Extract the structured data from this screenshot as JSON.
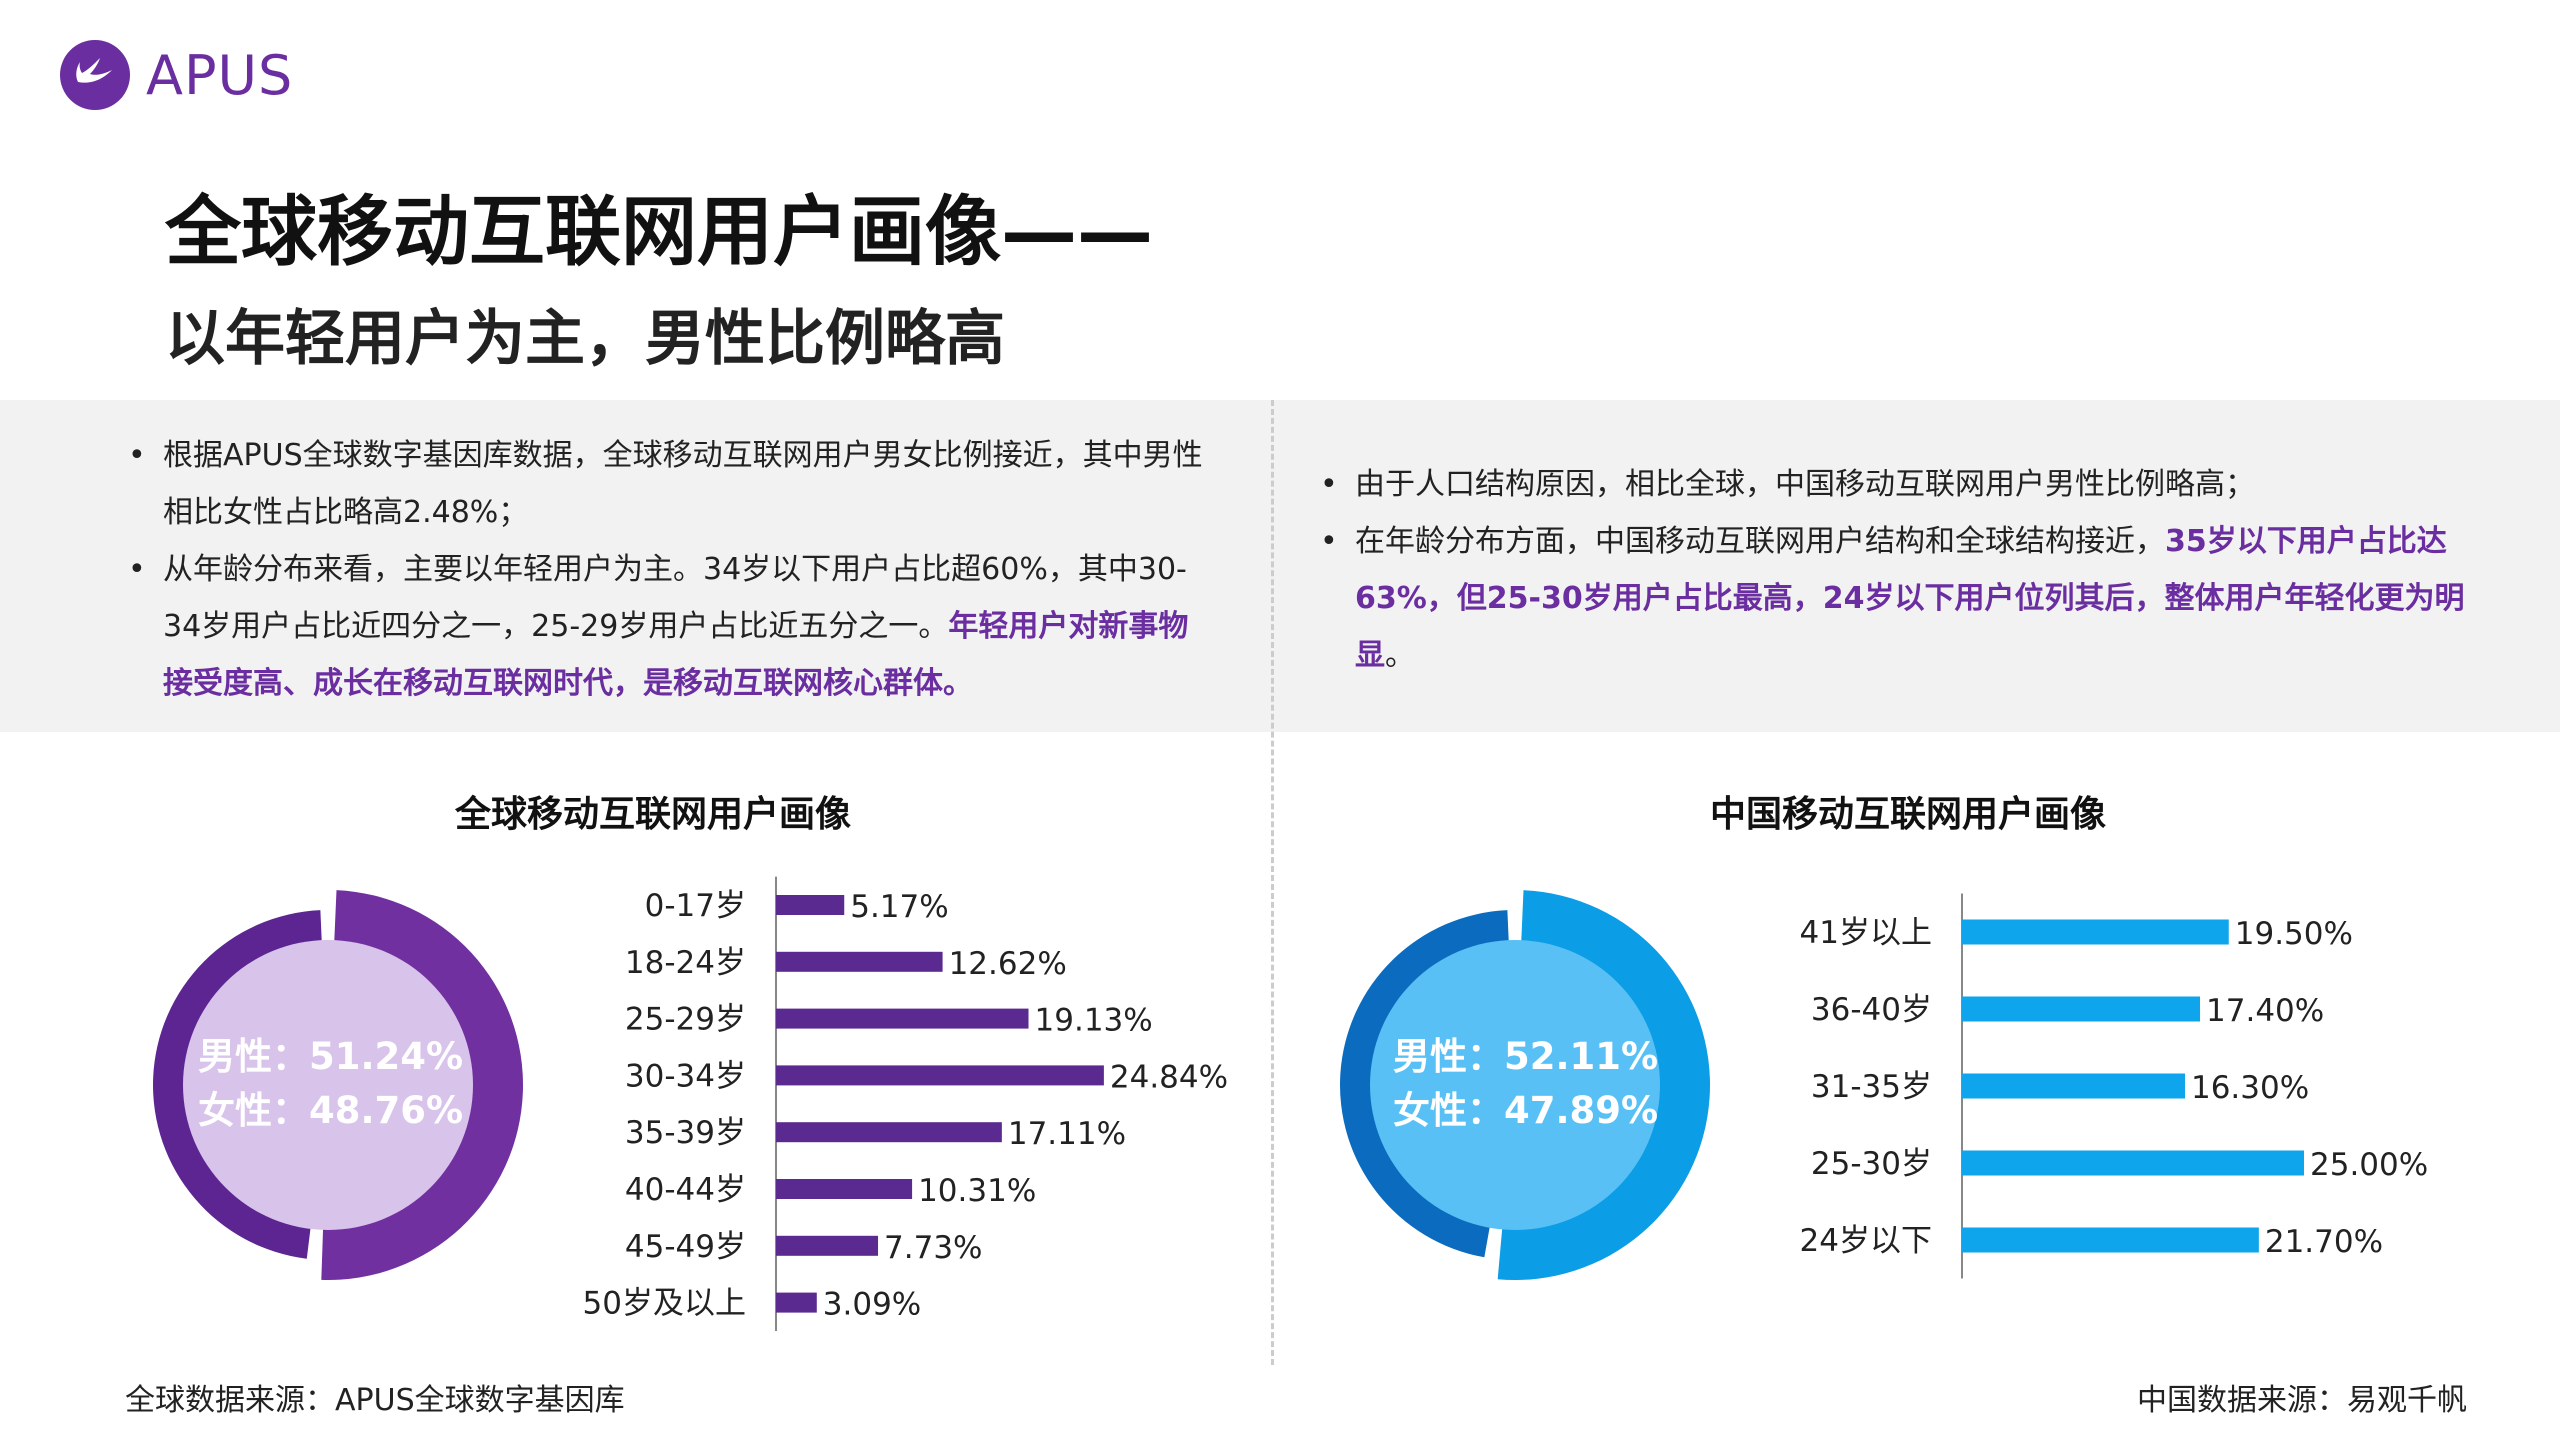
{
  "header": {
    "logo_text": "APUS",
    "title": "全球移动互联网用户画像——",
    "subtitle": "以年轻用户为主，男性比例略高"
  },
  "summary": {
    "left": [
      {
        "plain": "根据APUS全球数字基因库数据，全球移动互联网用户男女比例接近，其中男性相比女性占比略高2.48%；",
        "highlight": ""
      },
      {
        "plain": "从年龄分布来看，主要以年轻用户为主。34岁以下用户占比超60%，其中30-34岁用户占比近四分之一，25-29岁用户占比近五分之一。",
        "highlight": "年轻用户对新事物接受度高、成长在移动互联网时代，是移动互联网核心群体。"
      }
    ],
    "right": [
      {
        "plain": "由于人口结构原因，相比全球，中国移动互联网用户男性比例略高；",
        "highlight": "",
        "tail": ""
      },
      {
        "plain": "在年龄分布方面，中国移动互联网用户结构和全球结构接近，",
        "highlight": "35岁以下用户占比达63%，但25-30岁用户占比最高，24岁以下用户位列其后，整体用户年轻化更为明显",
        "tail": "。"
      }
    ]
  },
  "colors": {
    "brand": "#6a2ea0",
    "global_male": "#7030a0",
    "global_female": "#5c2591",
    "global_inner": "#d8c3ea",
    "global_bar": "#5b2a90",
    "china_male": "#0b9de5",
    "china_female": "#0b6bbf",
    "china_inner": "#59c0f5",
    "china_bar": "#0ea5ec",
    "axis": "#888888"
  },
  "chart_data": [
    {
      "type": "pie",
      "title": "全球移动互联网用户画像",
      "labels": [
        "男性",
        "女性"
      ],
      "values": [
        51.24,
        48.76
      ],
      "value_labels": [
        "男性：51.24%",
        "女性：48.76%"
      ]
    },
    {
      "type": "bar",
      "orientation": "horizontal",
      "title": "",
      "categories": [
        "0-17岁",
        "18-24岁",
        "25-29岁",
        "30-34岁",
        "35-39岁",
        "40-44岁",
        "45-49岁",
        "50岁及以上"
      ],
      "values": [
        5.17,
        12.62,
        19.13,
        24.84,
        17.11,
        10.31,
        7.73,
        3.09
      ],
      "value_labels": [
        "5.17%",
        "12.62%",
        "19.13%",
        "24.84%",
        "17.11%",
        "10.31%",
        "7.73%",
        "3.09%"
      ],
      "xlim": [
        0,
        25
      ]
    },
    {
      "type": "pie",
      "title": "中国移动互联网用户画像",
      "labels": [
        "男性",
        "女性"
      ],
      "values": [
        52.11,
        47.89
      ],
      "value_labels": [
        "男性：52.11%",
        "女性：47.89%"
      ]
    },
    {
      "type": "bar",
      "orientation": "horizontal",
      "title": "",
      "categories": [
        "41岁以上",
        "36-40岁",
        "31-35岁",
        "25-30岁",
        "24岁以下"
      ],
      "values": [
        19.5,
        17.4,
        16.3,
        25.0,
        21.7
      ],
      "value_labels": [
        "19.50%",
        "17.40%",
        "16.30%",
        "25.00%",
        "21.70%"
      ],
      "xlim": [
        0,
        25
      ]
    }
  ],
  "sources": {
    "global": "全球数据来源：APUS全球数字基因库",
    "china": "中国数据来源：易观千帆"
  }
}
